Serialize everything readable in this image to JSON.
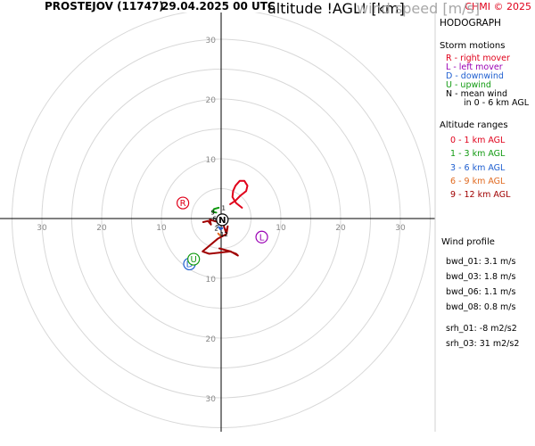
{
  "header": {
    "station": "PROSTEJOV (11747)",
    "datetime": "29.04.2025 00 UTC",
    "credit": "CHMI © 2025"
  },
  "panel": {
    "title": "HODOGRAPH",
    "storm_title": "Storm motions",
    "storm_items": [
      {
        "text": "R - right mover",
        "color": "#e0001a"
      },
      {
        "text": "L - left mover",
        "color": "#9a00b4"
      },
      {
        "text": "D - downwind",
        "color": "#1f5fd0"
      },
      {
        "text": "U - upwind",
        "color": "#119a11"
      },
      {
        "text": "N - mean wind",
        "color": "#000000"
      },
      {
        "text": "in 0 - 6 km AGL",
        "color": "#000000"
      }
    ],
    "alt_title": "Altitude ranges",
    "alt_items": [
      {
        "text": "0 - 1 km AGL",
        "color": "#e0001a"
      },
      {
        "text": "1 - 3 km AGL",
        "color": "#119a11"
      },
      {
        "text": "3 - 6 km AGL",
        "color": "#1f5fd0"
      },
      {
        "text": "6 - 9 km AGL",
        "color": "#e06a20"
      },
      {
        "text": "9 - 12 km AGL",
        "color": "#a00000"
      }
    ]
  },
  "profile": {
    "title": "Wind profile",
    "bwd": [
      "bwd_01: 3.1 m/s",
      "bwd_03: 1.8 m/s",
      "bwd_06: 1.1 m/s",
      "bwd_08: 0.8 m/s"
    ],
    "srh": [
      "srh_01: -8 m2/s2",
      "srh_03: 31 m2/s2"
    ]
  },
  "footer": {
    "altitude_label": "altitude !AGL! [km]",
    "speed_label": "wind speed [m/s]"
  },
  "chart_data": {
    "type": "line",
    "title": "HODOGRAPH",
    "units": "m/s",
    "ring_step": 5,
    "ring_max": 35,
    "ticks": [
      10,
      20,
      30
    ],
    "grid": true,
    "series": [
      {
        "name": "0 - 1 km AGL",
        "color": "#e0001a",
        "u": [
          3.5,
          2.5,
          1.9,
          2.0,
          2.4,
          3.1,
          3.9,
          4.4,
          4.2,
          3.2,
          2.4,
          1.5
        ],
        "v": [
          1.8,
          2.6,
          3.6,
          4.6,
          5.5,
          6.3,
          6.3,
          5.5,
          4.6,
          3.8,
          3.0,
          2.4
        ]
      },
      {
        "name": "1 - 3 km AGL",
        "color": "#119a11",
        "u": [
          -0.4,
          -1.2,
          -1.4,
          -0.8
        ],
        "v": [
          1.8,
          1.6,
          1.1,
          1.0
        ]
      },
      {
        "name": "3 - 6 km AGL",
        "color": "#1f5fd0",
        "u": [
          -0.4,
          -0.1,
          0.2
        ],
        "v": [
          -1.4,
          -1.8,
          -1.6
        ]
      },
      {
        "name": "6 - 9 km AGL",
        "color": "#e06a20",
        "u": [
          -0.5,
          -0.2
        ],
        "v": [
          -2.5,
          -2.8
        ]
      },
      {
        "name": "9 - 12 km AGL",
        "color": "#a00000",
        "u": [
          -3.0,
          -2.2,
          -1.7,
          -1.9,
          -0.5,
          0.4,
          0.5,
          0.8,
          1.1,
          0.9,
          -0.6,
          -3.1,
          -2.0,
          1.5,
          2.5,
          2.8,
          1.6,
          -0.3
        ],
        "v": [
          -0.6,
          -0.4,
          -1.0,
          -0.2,
          -0.6,
          0.3,
          -1.4,
          -2.3,
          -1.3,
          -2.6,
          -3.4,
          -5.5,
          -5.9,
          -5.5,
          -5.9,
          -6.2,
          -5.5,
          -5.0
        ]
      }
    ],
    "height_labels": [
      {
        "text": "9",
        "u": -1.4,
        "v": 0.7
      },
      {
        "text": "6",
        "u": -1.1,
        "v": -0.4
      },
      {
        "text": "3",
        "u": -0.6,
        "v": -1.2
      },
      {
        "text": "2",
        "u": -0.8,
        "v": -2.0
      },
      {
        "text": "12",
        "u": 0.5,
        "v": -3.0
      },
      {
        "text": "1",
        "u": 0.4,
        "v": 1.4
      }
    ],
    "storm_markers": [
      {
        "label": "R",
        "u": -6.4,
        "v": 2.6,
        "color": "#e0001a"
      },
      {
        "label": "L",
        "u": 6.8,
        "v": -3.1,
        "color": "#9a00b4"
      },
      {
        "label": "D",
        "u": -5.3,
        "v": -7.6,
        "color": "#1f5fd0"
      },
      {
        "label": "U",
        "u": -4.6,
        "v": -6.8,
        "color": "#119a11"
      },
      {
        "label": "N",
        "u": 0.2,
        "v": -0.2,
        "color": "#000000"
      }
    ]
  }
}
